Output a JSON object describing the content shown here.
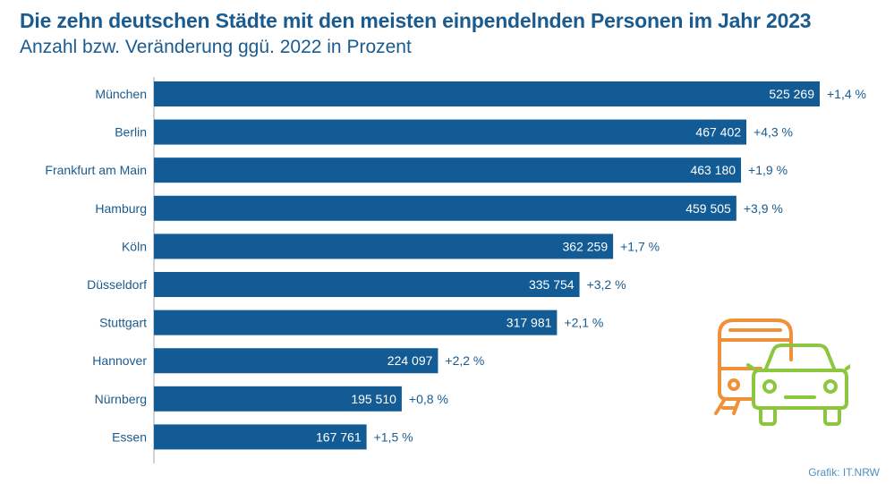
{
  "title": "Die zehn deutschen Städte mit den meisten einpendelnden Personen im Jahr 2023",
  "subtitle": "Anzahl bzw. Veränderung ggü. 2022 in Prozent",
  "credit": "Grafik: IT.NRW",
  "colors": {
    "title": "#1a5b90",
    "bar": "#135b94",
    "value_text": "#ffffff",
    "change_text": "#1a5b90",
    "category_text": "#1a5b90",
    "train_icon": "#f0913a",
    "car_icon": "#8cc63f"
  },
  "icons": [
    "train-icon",
    "car-icon"
  ],
  "chart_data": {
    "type": "bar",
    "orientation": "horizontal",
    "categories": [
      "München",
      "Berlin",
      "Frankfurt am Main",
      "Hamburg",
      "Köln",
      "Düsseldorf",
      "Stuttgart",
      "Hannover",
      "Nürnberg",
      "Essen"
    ],
    "values": [
      525269,
      467402,
      463180,
      459505,
      362259,
      335754,
      317981,
      224097,
      195510,
      167761
    ],
    "value_labels": [
      "525 269",
      "467 402",
      "463 180",
      "459 505",
      "362 259",
      "335 754",
      "317 981",
      "224 097",
      "195 510",
      "167 761"
    ],
    "change_labels": [
      "+1,4 %",
      "+4,3 %",
      "+1,9 %",
      "+3,9 %",
      "+1,7 %",
      "+3,2 %",
      "+2,1 %",
      "+2,2 %",
      "+0,8 %",
      "+1,5 %"
    ],
    "xlim": [
      0,
      525269
    ],
    "grid": false,
    "legend": "none"
  }
}
